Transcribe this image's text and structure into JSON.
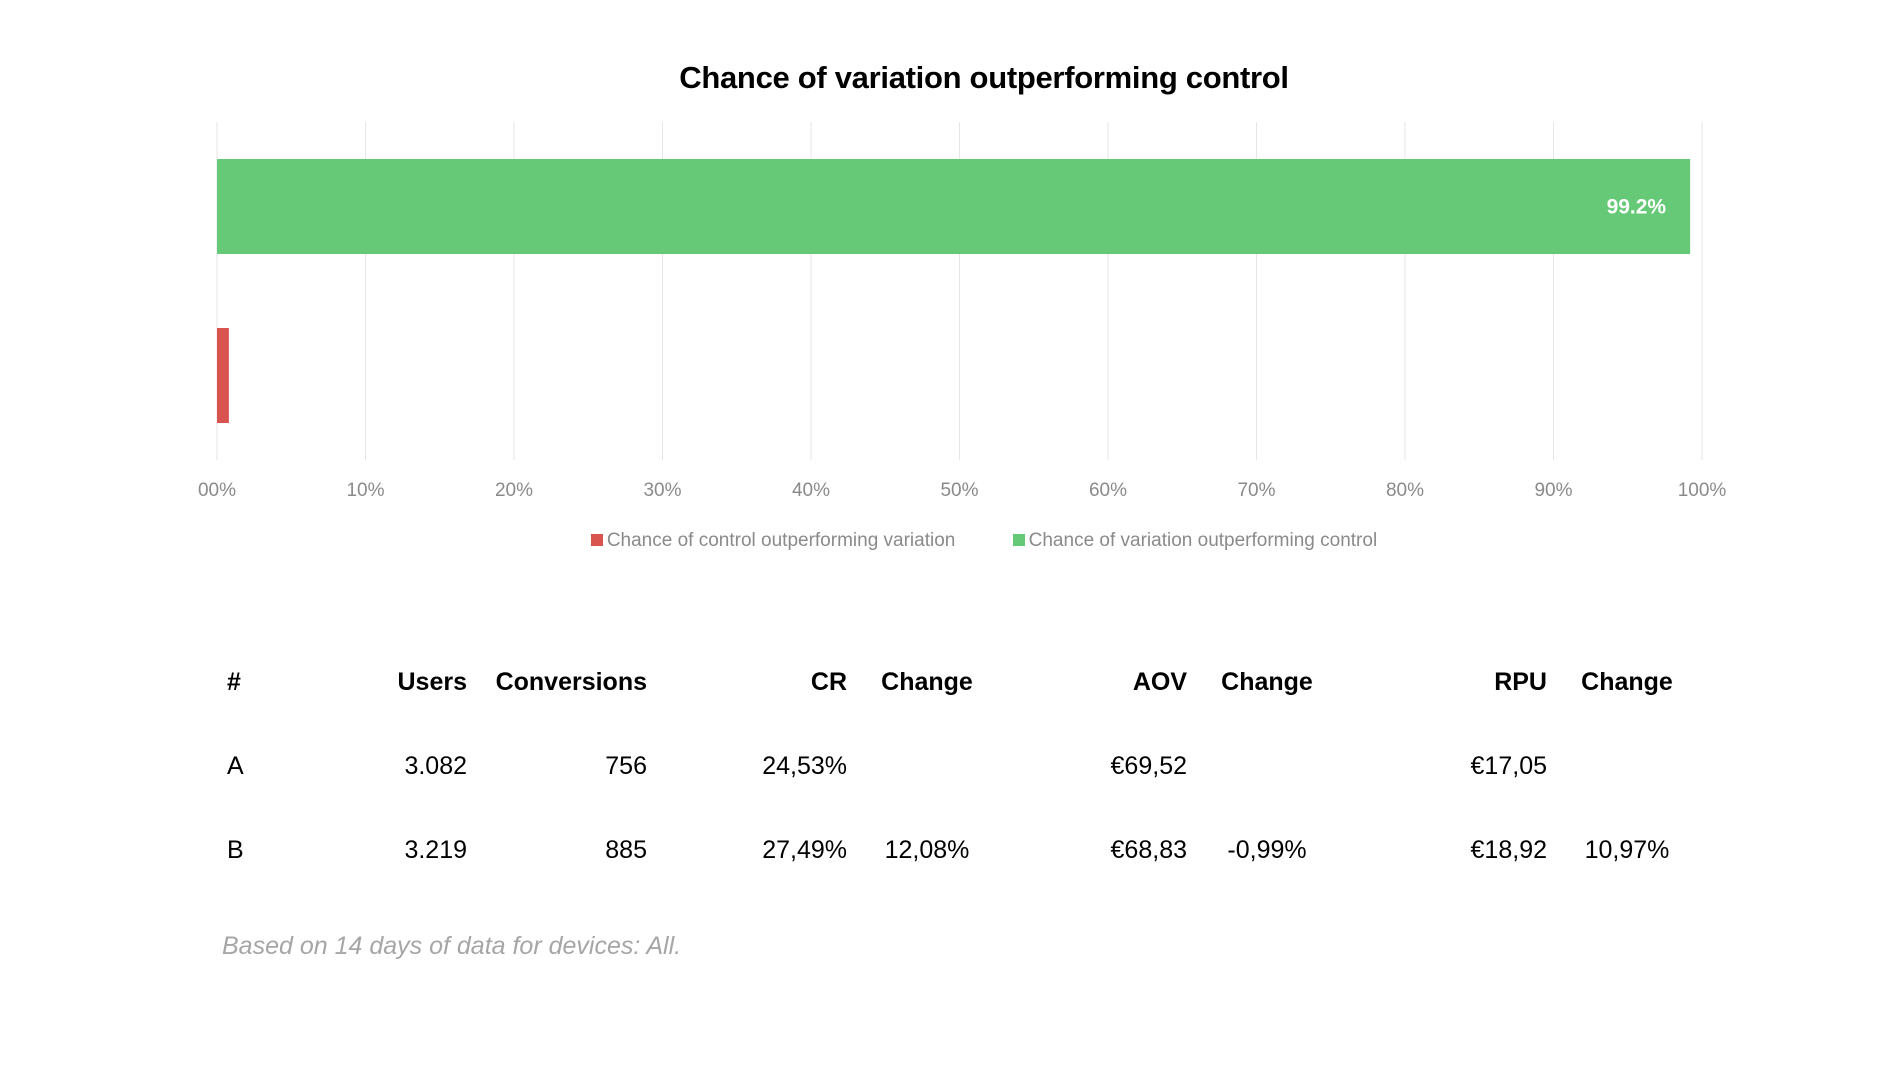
{
  "chart_data": {
    "type": "bar",
    "orientation": "horizontal",
    "title": "Chance of variation outperforming control",
    "xlim": [
      0,
      100
    ],
    "x_ticks": [
      "00%",
      "10%",
      "20%",
      "30%",
      "40%",
      "50%",
      "60%",
      "70%",
      "80%",
      "90%",
      "100%"
    ],
    "series": [
      {
        "name": "Chance of variation outperforming control",
        "value": 99.2,
        "data_label": "99.2%",
        "color": "#66c977"
      },
      {
        "name": "Chance of control outperforming variation",
        "value": 0.8,
        "data_label": "",
        "color": "#d9534f"
      }
    ],
    "legend": [
      "Chance of control outperforming variation",
      "Chance of variation outperforming control"
    ],
    "legend_position": "bottom",
    "grid": true
  },
  "table": {
    "headers": [
      "#",
      "Users",
      "Conversions",
      "CR",
      "Change",
      "AOV",
      "Change",
      "RPU",
      "Change"
    ],
    "rows": [
      [
        "A",
        "3.082",
        "756",
        "24,53%",
        "",
        "€69,52",
        "",
        "€17,05",
        ""
      ],
      [
        "B",
        "3.219",
        "885",
        "27,49%",
        "12,08%",
        "€68,83",
        "-0,99%",
        "€18,92",
        "10,97%"
      ]
    ]
  },
  "footnote": "Based on 14 days of data for devices: All."
}
